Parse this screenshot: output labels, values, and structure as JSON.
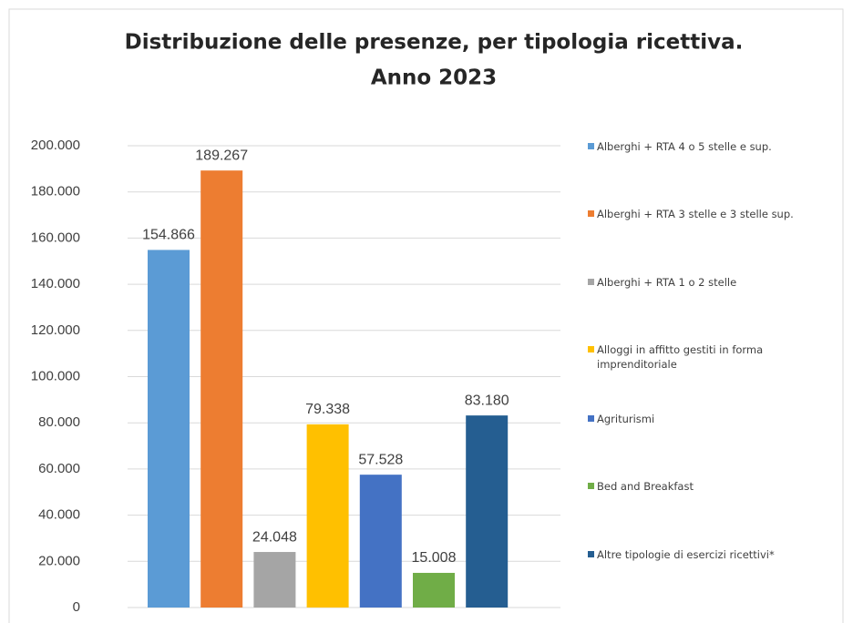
{
  "chart_data": {
    "type": "bar",
    "title": [
      "Distribuzione delle presenze, per tipologia ricettiva.",
      "Anno 2023"
    ],
    "categories": [
      null
    ],
    "series": [
      {
        "name": "Alberghi + RTA 4 o 5 stelle e sup.",
        "color": "#5b9bd5",
        "values": [
          154866
        ],
        "value_labels": [
          "154.866"
        ]
      },
      {
        "name": "Alberghi + RTA 3 stelle e 3 stelle sup.",
        "color": "#ed7d31",
        "values": [
          189267
        ],
        "value_labels": [
          "189.267"
        ]
      },
      {
        "name": "Alberghi + RTA 1 o 2 stelle",
        "color": "#a5a5a5",
        "values": [
          24048
        ],
        "value_labels": [
          "24.048"
        ]
      },
      {
        "name": "Alloggi in affitto gestiti in forma imprenditoriale",
        "color": "#ffc000",
        "values": [
          79338
        ],
        "value_labels": [
          "79.338"
        ]
      },
      {
        "name": "Agriturismi",
        "color": "#4472c4",
        "values": [
          57528
        ],
        "value_labels": [
          "57.528"
        ]
      },
      {
        "name": "Bed and Breakfast",
        "color": "#70ad47",
        "values": [
          15008
        ],
        "value_labels": [
          "15.008"
        ]
      },
      {
        "name": "Altre tipologie di esercizi ricettivi*",
        "color": "#255e91",
        "values": [
          83180
        ],
        "value_labels": [
          "83.180"
        ]
      }
    ],
    "ylim": [
      0,
      200000
    ],
    "yticks": [
      0,
      {
        "value": 20000,
        "label": "20.000"
      },
      {
        "value": 40000,
        "label": "40.000"
      },
      {
        "value": 60000,
        "label": "60.000"
      },
      {
        "value": 80000,
        "label": "80.000"
      },
      {
        "value": 100000,
        "label": "100.000"
      },
      {
        "value": 120000,
        "label": "120.000"
      },
      {
        "value": 140000,
        "label": "140.000"
      },
      {
        "value": 160000,
        "label": "160.000"
      },
      {
        "value": 180000,
        "label": "180.000"
      },
      {
        "value": 200000,
        "label": "200.000"
      }
    ],
    "grid": true,
    "legend": "right"
  }
}
